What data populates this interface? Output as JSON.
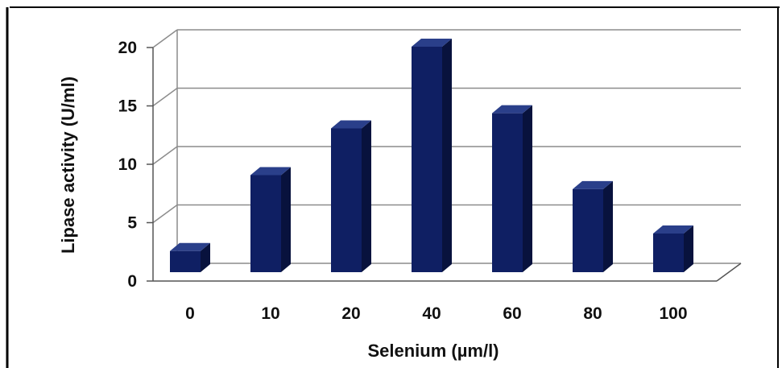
{
  "chart_data": {
    "type": "bar",
    "style": "3d-column",
    "categories": [
      "0",
      "10",
      "20",
      "40",
      "60",
      "80",
      "100"
    ],
    "values": [
      2.5,
      9,
      13,
      20,
      14.3,
      7.8,
      4
    ],
    "xlabel": "Selenium (µm/l)",
    "ylabel": "Lipase activity (U/ml)",
    "ylim": [
      0,
      20
    ],
    "yticks": [
      "0",
      "5",
      "10",
      "15",
      "20"
    ],
    "grid": true,
    "legend": "none",
    "bar_color": "#0f1f63",
    "bar_side_color": "#08123d",
    "bar_top_color": "#2a3f8a"
  }
}
